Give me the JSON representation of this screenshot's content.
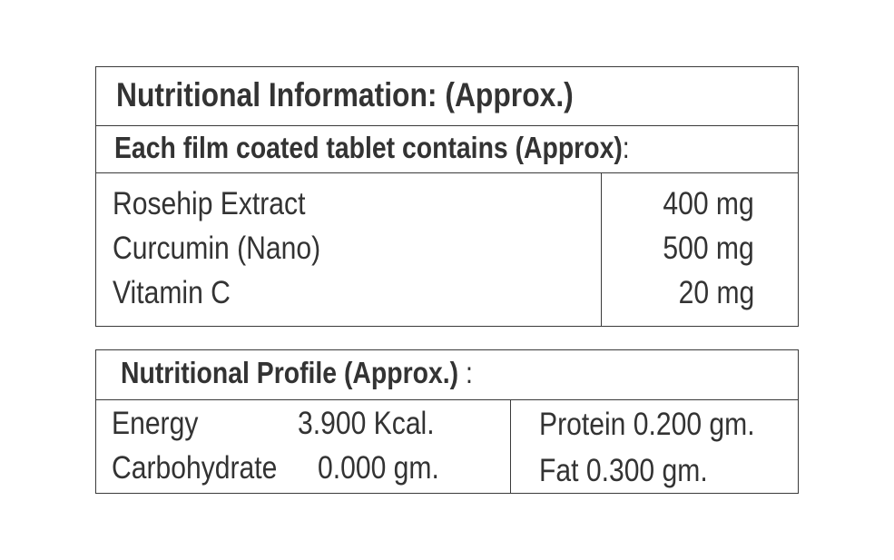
{
  "ingredients_table": {
    "title": "Nutritional Information: (Approx.)",
    "subtitle": "Each film coated tablet contains (Approx)",
    "subtitle_suffix": ":",
    "rows": [
      {
        "name": "Rosehip Extract",
        "amount": "400 mg"
      },
      {
        "name": "Curcumin (Nano)",
        "amount": "500 mg"
      },
      {
        "name": "Vitamin C",
        "amount": "20 mg"
      }
    ]
  },
  "profile_table": {
    "title": "Nutritional Profile (Approx.)",
    "title_suffix": ":",
    "left": [
      {
        "name": "Energy",
        "value": "3.900 Kcal."
      },
      {
        "name": "Carbohydrate",
        "value": "0.000 gm."
      }
    ],
    "right": [
      "Protein 0.200 gm.",
      "Fat 0.300 gm."
    ]
  }
}
